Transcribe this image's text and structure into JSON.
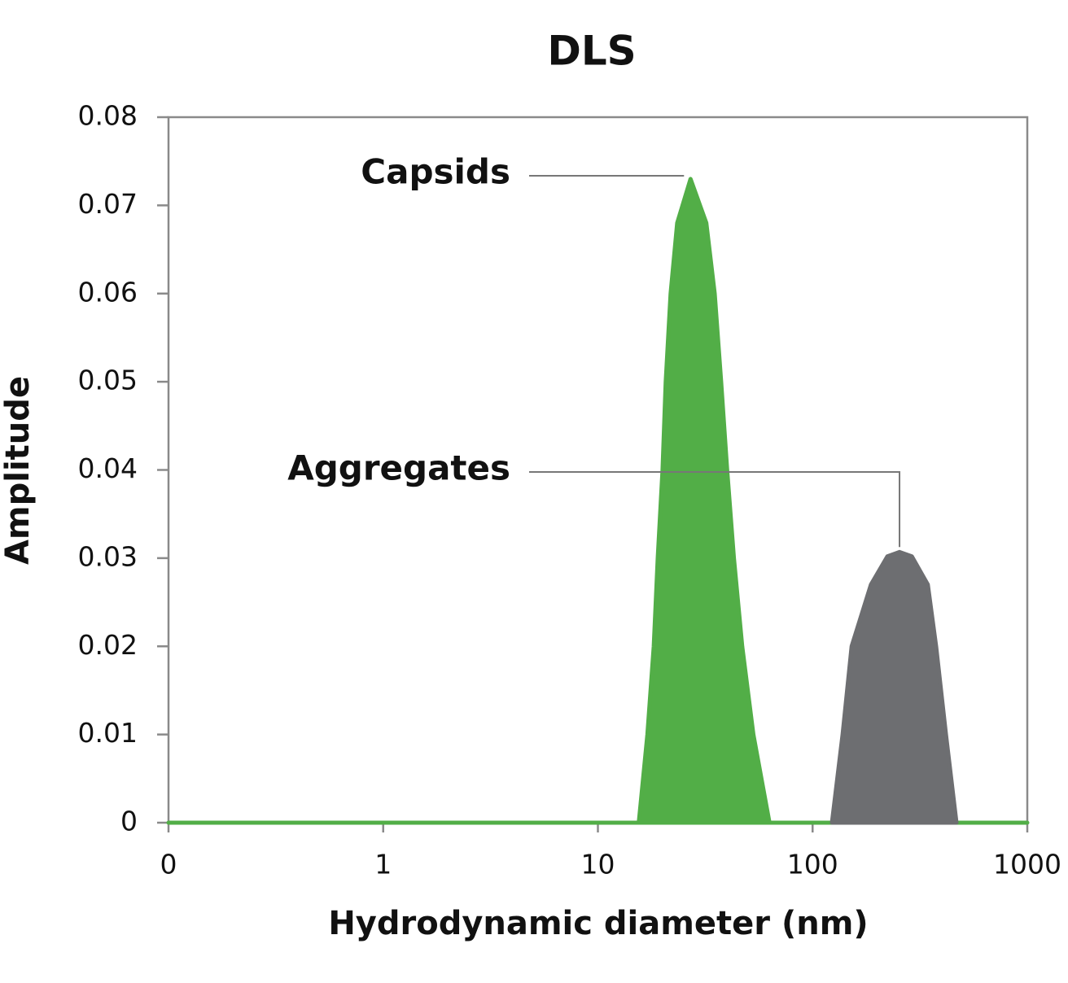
{
  "chart_data": {
    "type": "area",
    "title": "DLS",
    "xlabel": "Hydrodynamic diameter (nm)",
    "ylabel": "Amplitude",
    "x": [
      0.1,
      15.5,
      17,
      18.2,
      19,
      20,
      20.7,
      21.8,
      23.4,
      27,
      32,
      35,
      37.5,
      40,
      43,
      47,
      53,
      63,
      123,
      138,
      152,
      187,
      223,
      254,
      290,
      344,
      376,
      418,
      468,
      1000
    ],
    "series": [
      {
        "color": "#52ae47",
        "values": [
          0,
          0,
          0.01,
          0.02,
          0.03,
          0.04,
          0.05,
          0.06,
          0.068,
          0.073,
          0.068,
          0.06,
          0.05,
          0.04,
          0.03,
          0.02,
          0.01,
          0,
          0,
          0,
          0,
          0,
          0,
          0,
          0,
          0,
          0,
          0,
          0,
          0
        ]
      },
      {
        "color": "#6d6e71",
        "values": [
          null,
          null,
          null,
          null,
          null,
          null,
          null,
          null,
          null,
          null,
          null,
          null,
          null,
          null,
          null,
          null,
          null,
          null,
          0,
          0.01,
          0.02,
          0.027,
          0.0302,
          0.0307,
          0.0302,
          0.027,
          0.02,
          0.01,
          0,
          null
        ]
      }
    ],
    "annotations": [
      "Capsids",
      "Aggregates"
    ],
    "xscale": "log",
    "xlim": [
      0.1,
      1000
    ],
    "xticks": [
      {
        "value": 0.1,
        "label": "0"
      },
      1,
      10,
      100,
      1000
    ],
    "ylim": [
      0,
      0.08
    ],
    "yticks": [
      0,
      0.01,
      0.02,
      0.03,
      0.04,
      0.05,
      0.06,
      0.07,
      0.08
    ]
  }
}
